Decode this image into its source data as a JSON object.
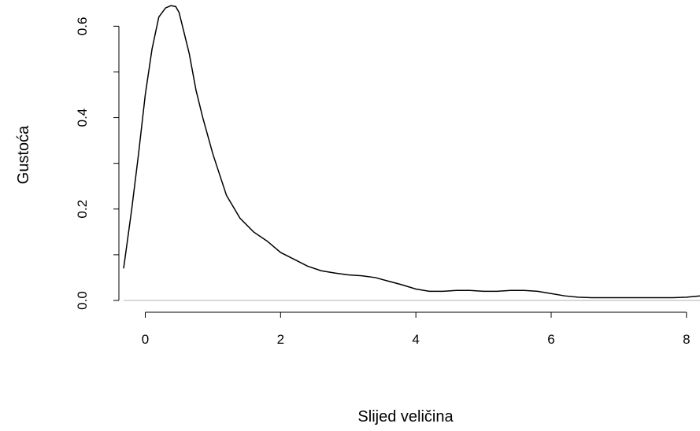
{
  "chart_data": {
    "type": "line",
    "title": "",
    "xlabel": "Slijed veličina",
    "ylabel": "Gustoća",
    "xlim": [
      -0.32,
      8.2
    ],
    "ylim": [
      0,
      0.635
    ],
    "x_ticks": [
      0,
      2,
      4,
      6,
      8
    ],
    "y_ticks": [
      0.0,
      0.2,
      0.4,
      0.6
    ],
    "x_tick_labels": [
      "0",
      "2",
      "4",
      "6",
      "8"
    ],
    "y_tick_labels": [
      "0.0",
      "0.2",
      "0.4",
      "0.6"
    ],
    "grid": false,
    "legend": "none",
    "baseline_y": 0,
    "series": [
      {
        "x": [
          -0.32,
          -0.2,
          -0.1,
          0,
          0.1,
          0.2,
          0.3,
          0.38,
          0.45,
          0.5,
          0.55,
          0.65,
          0.75,
          0.85,
          1.0,
          1.2,
          1.4,
          1.6,
          1.8,
          2.0,
          2.2,
          2.4,
          2.6,
          2.8,
          3.0,
          3.2,
          3.4,
          3.6,
          3.8,
          4.0,
          4.2,
          4.4,
          4.6,
          4.8,
          5.0,
          5.2,
          5.4,
          5.6,
          5.8,
          6.0,
          6.2,
          6.4,
          6.6,
          6.8,
          7.0,
          7.2,
          7.4,
          7.6,
          7.8,
          8.0,
          8.2
        ],
        "y": [
          0.07,
          0.2,
          0.32,
          0.45,
          0.55,
          0.62,
          0.64,
          0.645,
          0.643,
          0.63,
          0.6,
          0.54,
          0.46,
          0.4,
          0.32,
          0.23,
          0.18,
          0.15,
          0.13,
          0.105,
          0.09,
          0.075,
          0.065,
          0.06,
          0.056,
          0.054,
          0.05,
          0.042,
          0.034,
          0.025,
          0.02,
          0.02,
          0.022,
          0.022,
          0.02,
          0.02,
          0.022,
          0.022,
          0.02,
          0.015,
          0.01,
          0.007,
          0.006,
          0.006,
          0.006,
          0.006,
          0.006,
          0.006,
          0.006,
          0.007,
          0.01
        ],
        "color": "#000000"
      }
    ]
  }
}
